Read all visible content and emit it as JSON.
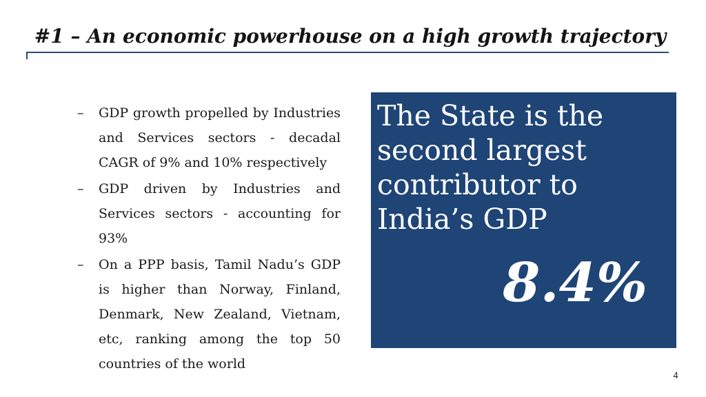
{
  "slide": {
    "title": "#1 – An economic powerhouse on a high growth trajectory",
    "page_number": "4"
  },
  "bullets": [
    {
      "marker": "–",
      "text": "GDP growth propelled by Industries and Services sectors -  decadal CAGR of 9% and 10% respectively"
    },
    {
      "marker": "–",
      "text": "GDP driven by Industries and Services sectors - accounting for 93%"
    },
    {
      "marker": "–",
      "text": "On a PPP basis, Tamil Nadu’s GDP is higher than Norway, Finland, Denmark, New Zealand, Vietnam, etc, ranking among the top 50 countries of the world"
    }
  ],
  "callout": {
    "text": "The State is the second largest contributor to India’s GDP",
    "stat": "8.4%"
  },
  "colors": {
    "callout_bg": "#1f4577",
    "rule": "#2b4a7a"
  }
}
